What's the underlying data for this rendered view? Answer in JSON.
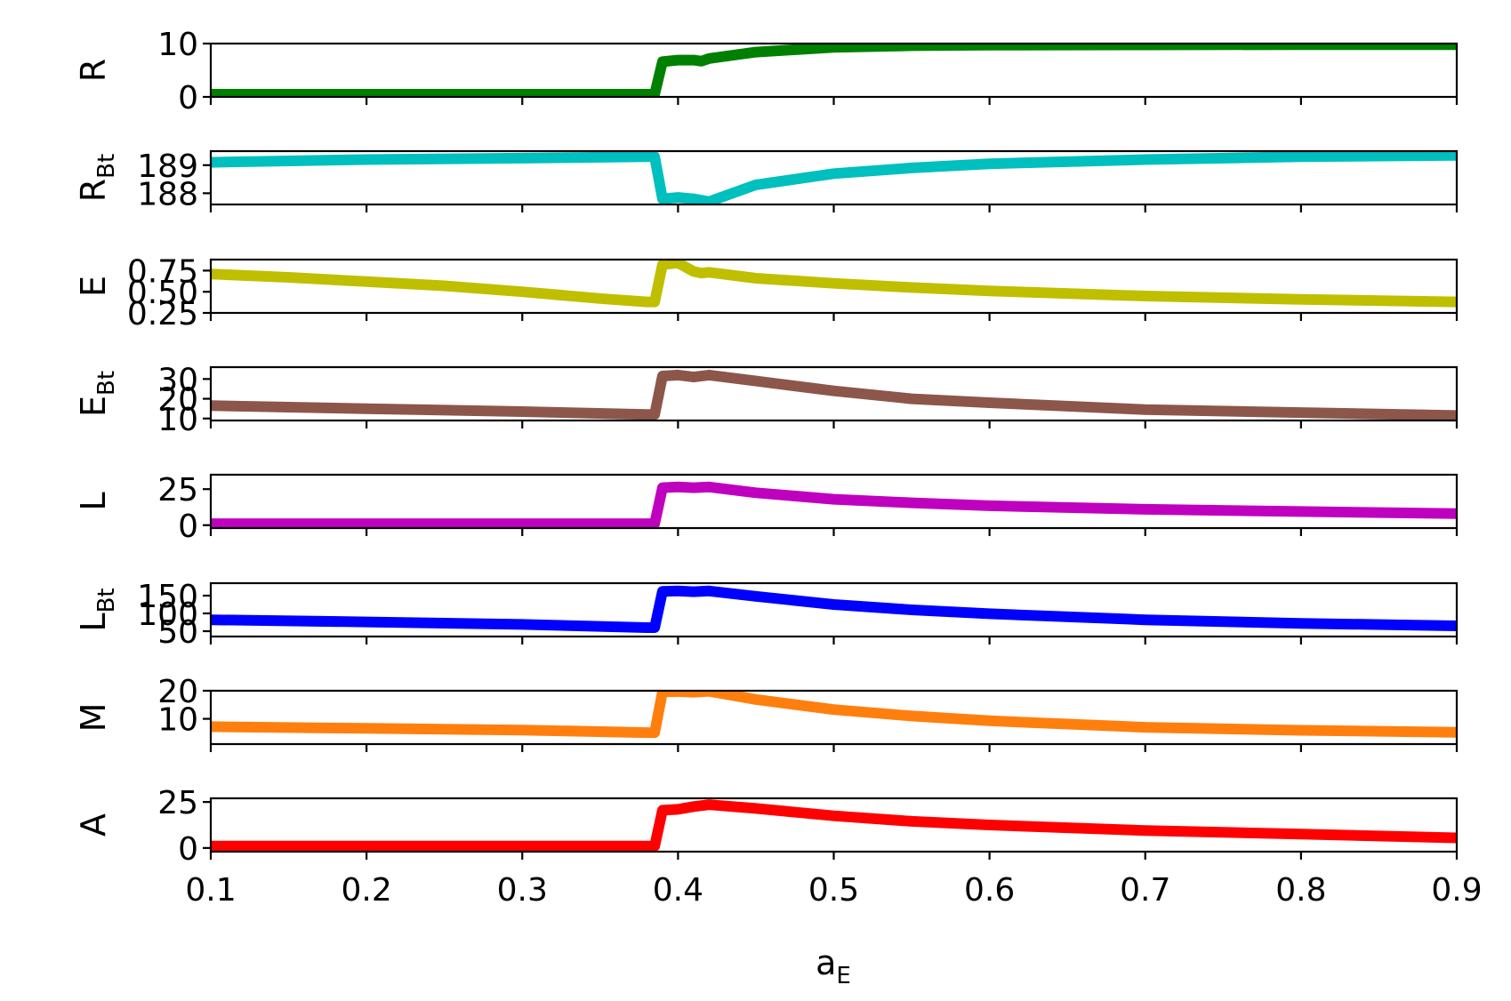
{
  "chart_data": {
    "type": "line",
    "xlabel": {
      "main": "a",
      "sub": "E"
    },
    "xlim": [
      0.1,
      0.9
    ],
    "x_ticks": [
      "0.1",
      "0.2",
      "0.3",
      "0.4",
      "0.5",
      "0.6",
      "0.7",
      "0.8",
      "0.9"
    ],
    "x_tick_values": [
      0.1,
      0.2,
      0.3,
      0.4,
      0.5,
      0.6,
      0.7,
      0.8,
      0.9
    ],
    "grid": false,
    "legend": "none",
    "panels": [
      {
        "ylabel": {
          "main": "R",
          "sub": ""
        },
        "color": "#008000",
        "ylim": [
          0,
          10
        ],
        "y_ticks": [
          "0",
          "10"
        ],
        "y_tick_values": [
          0,
          10
        ],
        "x": [
          0.1,
          0.2,
          0.3,
          0.38,
          0.385,
          0.39,
          0.4,
          0.41,
          0.415,
          0.42,
          0.45,
          0.5,
          0.55,
          0.6,
          0.7,
          0.8,
          0.9
        ],
        "values": [
          0.5,
          0.5,
          0.5,
          0.5,
          0.5,
          6.6,
          6.9,
          6.9,
          6.7,
          7.2,
          8.4,
          9.3,
          9.6,
          9.7,
          9.75,
          9.8,
          9.8
        ]
      },
      {
        "ylabel": {
          "main": "R",
          "sub": "Bt"
        },
        "color": "#00BFBF",
        "ylim": [
          187.6,
          189.5
        ],
        "y_ticks": [
          "188",
          "189"
        ],
        "y_tick_values": [
          188,
          189
        ],
        "x": [
          0.1,
          0.2,
          0.3,
          0.38,
          0.385,
          0.39,
          0.4,
          0.41,
          0.415,
          0.42,
          0.45,
          0.5,
          0.55,
          0.6,
          0.7,
          0.8,
          0.9
        ],
        "values": [
          189.1,
          189.2,
          189.25,
          189.3,
          189.3,
          187.8,
          187.85,
          187.8,
          187.75,
          187.7,
          188.3,
          188.7,
          188.9,
          189.05,
          189.2,
          189.3,
          189.35
        ]
      },
      {
        "ylabel": {
          "main": "E",
          "sub": ""
        },
        "color": "#BFBF00",
        "ylim": [
          0.25,
          0.88
        ],
        "y_ticks": [
          "0.25",
          "0.50",
          "0.75"
        ],
        "y_tick_values": [
          0.25,
          0.5,
          0.75
        ],
        "x": [
          0.1,
          0.15,
          0.2,
          0.25,
          0.3,
          0.35,
          0.38,
          0.385,
          0.39,
          0.4,
          0.41,
          0.415,
          0.42,
          0.45,
          0.5,
          0.55,
          0.6,
          0.7,
          0.8,
          0.9
        ],
        "values": [
          0.71,
          0.67,
          0.62,
          0.57,
          0.5,
          0.42,
          0.38,
          0.38,
          0.82,
          0.84,
          0.74,
          0.72,
          0.73,
          0.66,
          0.6,
          0.55,
          0.51,
          0.45,
          0.41,
          0.38
        ]
      },
      {
        "ylabel": {
          "main": "E",
          "sub": "Bt"
        },
        "color": "#8C564B",
        "ylim": [
          9,
          36
        ],
        "y_ticks": [
          "10",
          "20",
          "30"
        ],
        "y_tick_values": [
          10,
          20,
          30
        ],
        "x": [
          0.1,
          0.2,
          0.3,
          0.38,
          0.385,
          0.39,
          0.4,
          0.41,
          0.42,
          0.45,
          0.5,
          0.55,
          0.6,
          0.7,
          0.8,
          0.9
        ],
        "values": [
          16.5,
          15,
          13.5,
          12,
          12,
          31.5,
          32,
          31,
          32,
          29,
          24,
          20,
          18,
          14.5,
          13,
          11.5
        ]
      },
      {
        "ylabel": {
          "main": "L",
          "sub": ""
        },
        "color": "#BF00BF",
        "ylim": [
          -2,
          35
        ],
        "y_ticks": [
          "0",
          "25"
        ],
        "y_tick_values": [
          0,
          25
        ],
        "x": [
          0.1,
          0.2,
          0.3,
          0.38,
          0.385,
          0.39,
          0.4,
          0.41,
          0.42,
          0.45,
          0.5,
          0.55,
          0.6,
          0.7,
          0.8,
          0.9
        ],
        "values": [
          1,
          1,
          1,
          1,
          1,
          26,
          26.5,
          26,
          26.5,
          22.5,
          18,
          15.5,
          13.5,
          11,
          9.5,
          8
        ]
      },
      {
        "ylabel": {
          "main": "L",
          "sub": "Bt"
        },
        "color": "#0000FF",
        "ylim": [
          35,
          185
        ],
        "y_ticks": [
          "50",
          "100",
          "150"
        ],
        "y_tick_values": [
          50,
          100,
          150
        ],
        "x": [
          0.1,
          0.2,
          0.3,
          0.38,
          0.385,
          0.39,
          0.4,
          0.41,
          0.42,
          0.45,
          0.5,
          0.55,
          0.6,
          0.7,
          0.8,
          0.9
        ],
        "values": [
          82,
          76,
          69,
          60,
          60,
          162,
          163,
          161,
          163,
          148,
          125,
          110,
          99,
          82,
          72,
          65
        ]
      },
      {
        "ylabel": {
          "main": "M",
          "sub": ""
        },
        "color": "#FF7F0E",
        "ylim": [
          1,
          20
        ],
        "y_ticks": [
          "10",
          "20"
        ],
        "y_tick_values": [
          10,
          20
        ],
        "x": [
          0.1,
          0.2,
          0.3,
          0.38,
          0.385,
          0.39,
          0.4,
          0.41,
          0.42,
          0.45,
          0.5,
          0.55,
          0.6,
          0.7,
          0.8,
          0.9
        ],
        "values": [
          7.2,
          6.6,
          6,
          5.1,
          5.1,
          19.6,
          19.7,
          19.5,
          19.8,
          16.9,
          13.3,
          11,
          9.3,
          7,
          5.9,
          5.2
        ]
      },
      {
        "ylabel": {
          "main": "A",
          "sub": ""
        },
        "color": "#FF0000",
        "ylim": [
          -2,
          27
        ],
        "y_ticks": [
          "0",
          "25"
        ],
        "y_tick_values": [
          0,
          25
        ],
        "x": [
          0.1,
          0.2,
          0.3,
          0.38,
          0.385,
          0.39,
          0.4,
          0.41,
          0.42,
          0.45,
          0.5,
          0.55,
          0.6,
          0.7,
          0.8,
          0.9
        ],
        "values": [
          1,
          1,
          1,
          1,
          1,
          20.5,
          21,
          22.5,
          23.5,
          21.5,
          17.5,
          14.5,
          12.5,
          9.5,
          7.5,
          5.5
        ]
      }
    ]
  }
}
